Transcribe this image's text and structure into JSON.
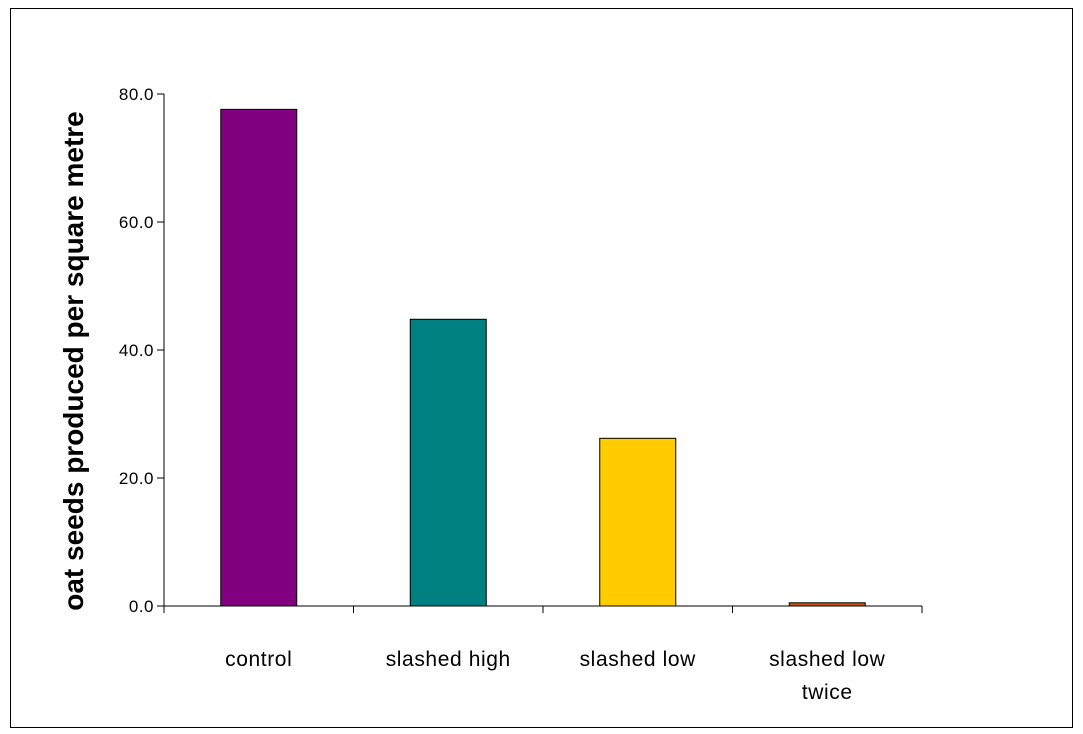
{
  "chart_data": {
    "type": "bar",
    "categories": [
      [
        "control"
      ],
      [
        "slashed high"
      ],
      [
        "slashed low"
      ],
      [
        "slashed low",
        "twice"
      ]
    ],
    "values": [
      77.6,
      44.8,
      26.2,
      0.5
    ],
    "colors": [
      "#800080",
      "#008080",
      "#FFCC00",
      "#CC5500"
    ],
    "title": "",
    "xlabel": "",
    "ylabel": "oat seeds produced per square metre",
    "ylim": [
      0,
      80
    ],
    "yticks": [
      "0.0",
      "20.0",
      "40.0",
      "60.0",
      "80.0"
    ],
    "grid": false
  }
}
